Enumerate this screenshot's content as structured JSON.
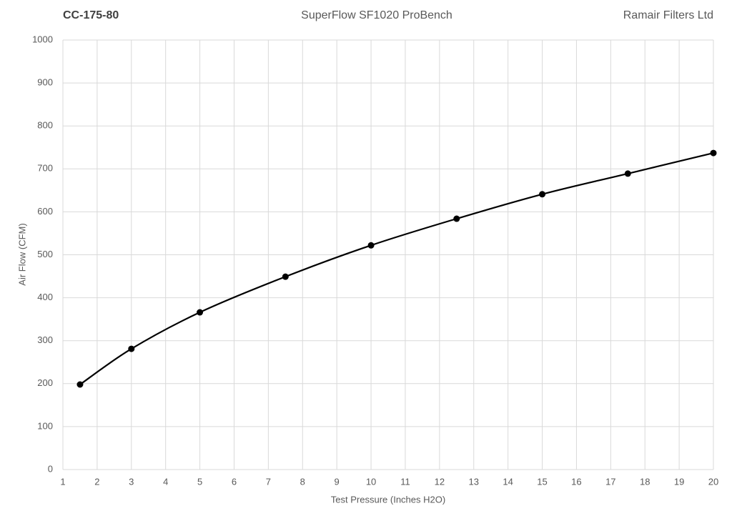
{
  "chart_data": {
    "type": "line",
    "title_left": "CC-175-80",
    "title": "SuperFlow SF1020 ProBench",
    "title_right": "Ramair Filters Ltd",
    "x_label": "Test Pressure (Inches H2O)",
    "y_label": "Air Flow (CFM)",
    "x": [
      1.5,
      3,
      5,
      7.5,
      10,
      12.5,
      15,
      17.5,
      20
    ],
    "series": [
      {
        "color": "#000000",
        "values": [
          198,
          281,
          366,
          449,
          522,
          584,
          641,
          689,
          737
        ]
      }
    ],
    "xlim": [
      1,
      20
    ],
    "xticks": [
      1,
      2,
      3,
      4,
      5,
      6,
      7,
      8,
      9,
      10,
      11,
      12,
      13,
      14,
      15,
      16,
      17,
      18,
      19,
      20
    ],
    "ylim": [
      0,
      1000
    ],
    "yticks": [
      0,
      100,
      200,
      300,
      400,
      500,
      600,
      700,
      800,
      900,
      1000
    ],
    "grid": true,
    "smooth": true,
    "markers": true
  }
}
